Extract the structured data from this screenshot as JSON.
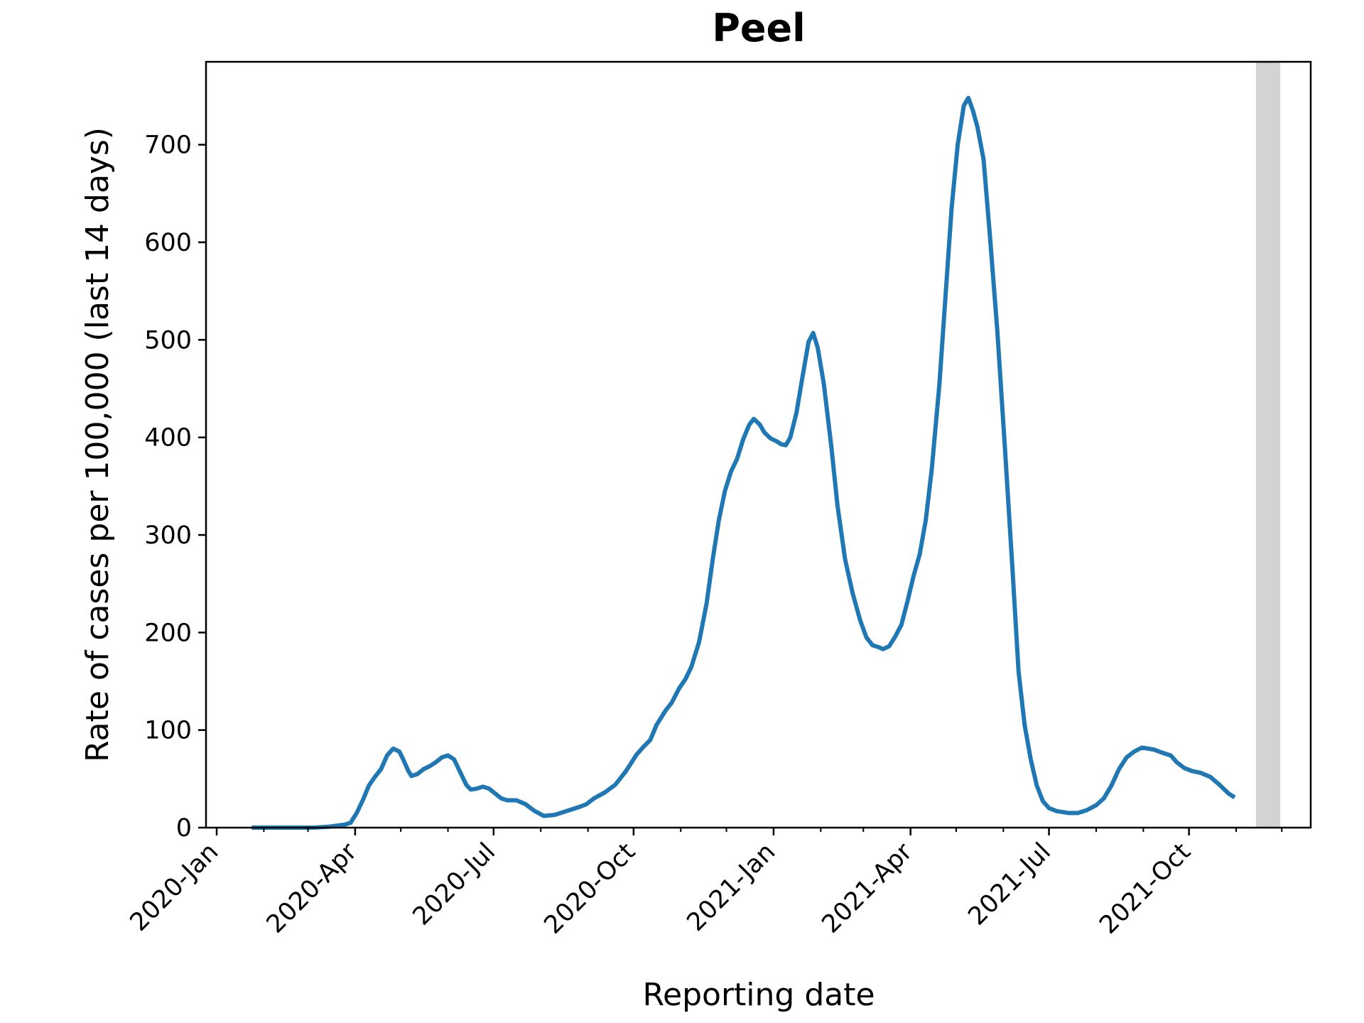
{
  "chart_data": {
    "type": "line",
    "title": "Peel",
    "xlabel": "Reporting date",
    "ylabel": "Rate of cases per 100,000 (last 14 days)",
    "xlim": [
      "2019-12-25",
      "2021-12-20"
    ],
    "ylim": [
      0,
      785
    ],
    "grid": false,
    "x_ticks": [
      {
        "date": "2020-01-01",
        "label": "2020-Jan"
      },
      {
        "date": "2020-04-01",
        "label": "2020-Apr"
      },
      {
        "date": "2020-07-01",
        "label": "2020-Jul"
      },
      {
        "date": "2020-10-01",
        "label": "2020-Oct"
      },
      {
        "date": "2021-01-01",
        "label": "2021-Jan"
      },
      {
        "date": "2021-04-01",
        "label": "2021-Apr"
      },
      {
        "date": "2021-07-01",
        "label": "2021-Jul"
      },
      {
        "date": "2021-10-01",
        "label": "2021-Oct"
      }
    ],
    "minor_x_ticks": [
      "2020-02-01",
      "2020-03-01",
      "2020-05-01",
      "2020-06-01",
      "2020-08-01",
      "2020-09-01",
      "2020-11-01",
      "2020-12-01",
      "2021-02-01",
      "2021-03-01",
      "2021-05-01",
      "2021-06-01",
      "2021-08-01",
      "2021-09-01",
      "2021-11-01",
      "2021-12-01"
    ],
    "y_ticks": [
      0,
      100,
      200,
      300,
      400,
      500,
      600,
      700
    ],
    "shaded_region": {
      "start": "2021-11-14",
      "end": "2021-11-30",
      "color": "#d3d3d3"
    },
    "series": [
      {
        "color": "#1f77b4",
        "points": [
          [
            "2020-01-24",
            0
          ],
          [
            "2020-02-15",
            0
          ],
          [
            "2020-03-05",
            0
          ],
          [
            "2020-03-15",
            1
          ],
          [
            "2020-03-25",
            3
          ],
          [
            "2020-03-29",
            5
          ],
          [
            "2020-04-02",
            15
          ],
          [
            "2020-04-06",
            28
          ],
          [
            "2020-04-10",
            43
          ],
          [
            "2020-04-14",
            52
          ],
          [
            "2020-04-18",
            60
          ],
          [
            "2020-04-22",
            74
          ],
          [
            "2020-04-26",
            81
          ],
          [
            "2020-04-30",
            78
          ],
          [
            "2020-05-02",
            72
          ],
          [
            "2020-05-06",
            58
          ],
          [
            "2020-05-08",
            53
          ],
          [
            "2020-05-12",
            55
          ],
          [
            "2020-05-16",
            60
          ],
          [
            "2020-05-20",
            63
          ],
          [
            "2020-05-24",
            67
          ],
          [
            "2020-05-28",
            72
          ],
          [
            "2020-06-01",
            74
          ],
          [
            "2020-06-05",
            70
          ],
          [
            "2020-06-09",
            57
          ],
          [
            "2020-06-13",
            44
          ],
          [
            "2020-06-16",
            39
          ],
          [
            "2020-06-20",
            40
          ],
          [
            "2020-06-24",
            42
          ],
          [
            "2020-06-28",
            40
          ],
          [
            "2020-07-02",
            35
          ],
          [
            "2020-07-06",
            30
          ],
          [
            "2020-07-10",
            28
          ],
          [
            "2020-07-16",
            28
          ],
          [
            "2020-07-22",
            24
          ],
          [
            "2020-07-28",
            17
          ],
          [
            "2020-08-03",
            12
          ],
          [
            "2020-08-10",
            13
          ],
          [
            "2020-08-18",
            17
          ],
          [
            "2020-08-26",
            21
          ],
          [
            "2020-08-31",
            24
          ],
          [
            "2020-09-05",
            30
          ],
          [
            "2020-09-12",
            36
          ],
          [
            "2020-09-19",
            44
          ],
          [
            "2020-09-26",
            58
          ],
          [
            "2020-10-03",
            75
          ],
          [
            "2020-10-07",
            82
          ],
          [
            "2020-10-12",
            90
          ],
          [
            "2020-10-16",
            105
          ],
          [
            "2020-10-22",
            120
          ],
          [
            "2020-10-26",
            128
          ],
          [
            "2020-10-31",
            143
          ],
          [
            "2020-11-04",
            152
          ],
          [
            "2020-11-08",
            165
          ],
          [
            "2020-11-13",
            190
          ],
          [
            "2020-11-18",
            230
          ],
          [
            "2020-11-22",
            275
          ],
          [
            "2020-11-26",
            315
          ],
          [
            "2020-11-30",
            345
          ],
          [
            "2020-12-04",
            365
          ],
          [
            "2020-12-08",
            378
          ],
          [
            "2020-12-12",
            398
          ],
          [
            "2020-12-16",
            413
          ],
          [
            "2020-12-19",
            419
          ],
          [
            "2020-12-23",
            413
          ],
          [
            "2020-12-26",
            405
          ],
          [
            "2020-12-30",
            399
          ],
          [
            "2021-01-03",
            396
          ],
          [
            "2021-01-06",
            393
          ],
          [
            "2021-01-09",
            392
          ],
          [
            "2021-01-12",
            400
          ],
          [
            "2021-01-16",
            425
          ],
          [
            "2021-01-20",
            462
          ],
          [
            "2021-01-24",
            498
          ],
          [
            "2021-01-27",
            507
          ],
          [
            "2021-01-30",
            492
          ],
          [
            "2021-02-03",
            455
          ],
          [
            "2021-02-08",
            390
          ],
          [
            "2021-02-12",
            330
          ],
          [
            "2021-02-17",
            275
          ],
          [
            "2021-02-22",
            240
          ],
          [
            "2021-02-27",
            212
          ],
          [
            "2021-03-03",
            195
          ],
          [
            "2021-03-07",
            187
          ],
          [
            "2021-03-11",
            185
          ],
          [
            "2021-03-14",
            183
          ],
          [
            "2021-03-18",
            186
          ],
          [
            "2021-03-22",
            196
          ],
          [
            "2021-03-26",
            208
          ],
          [
            "2021-03-30",
            232
          ],
          [
            "2021-04-03",
            258
          ],
          [
            "2021-04-07",
            280
          ],
          [
            "2021-04-11",
            315
          ],
          [
            "2021-04-15",
            368
          ],
          [
            "2021-04-20",
            455
          ],
          [
            "2021-04-24",
            545
          ],
          [
            "2021-04-28",
            635
          ],
          [
            "2021-05-02",
            700
          ],
          [
            "2021-05-06",
            740
          ],
          [
            "2021-05-09",
            748
          ],
          [
            "2021-05-12",
            735
          ],
          [
            "2021-05-15",
            718
          ],
          [
            "2021-05-19",
            685
          ],
          [
            "2021-05-23",
            610
          ],
          [
            "2021-05-28",
            510
          ],
          [
            "2021-06-02",
            390
          ],
          [
            "2021-06-07",
            265
          ],
          [
            "2021-06-11",
            160
          ],
          [
            "2021-06-15",
            105
          ],
          [
            "2021-06-19",
            70
          ],
          [
            "2021-06-23",
            43
          ],
          [
            "2021-06-27",
            27
          ],
          [
            "2021-07-01",
            20
          ],
          [
            "2021-07-06",
            17
          ],
          [
            "2021-07-14",
            15
          ],
          [
            "2021-07-20",
            15
          ],
          [
            "2021-07-26",
            18
          ],
          [
            "2021-08-01",
            23
          ],
          [
            "2021-08-06",
            30
          ],
          [
            "2021-08-11",
            43
          ],
          [
            "2021-08-16",
            60
          ],
          [
            "2021-08-21",
            72
          ],
          [
            "2021-08-26",
            78
          ],
          [
            "2021-08-31",
            82
          ],
          [
            "2021-09-04",
            81
          ],
          [
            "2021-09-08",
            80
          ],
          [
            "2021-09-13",
            77
          ],
          [
            "2021-09-19",
            74
          ],
          [
            "2021-09-23",
            67
          ],
          [
            "2021-09-28",
            61
          ],
          [
            "2021-10-03",
            58
          ],
          [
            "2021-10-09",
            56
          ],
          [
            "2021-10-15",
            52
          ],
          [
            "2021-10-21",
            44
          ],
          [
            "2021-10-27",
            35
          ],
          [
            "2021-10-31",
            31
          ]
        ]
      }
    ]
  }
}
